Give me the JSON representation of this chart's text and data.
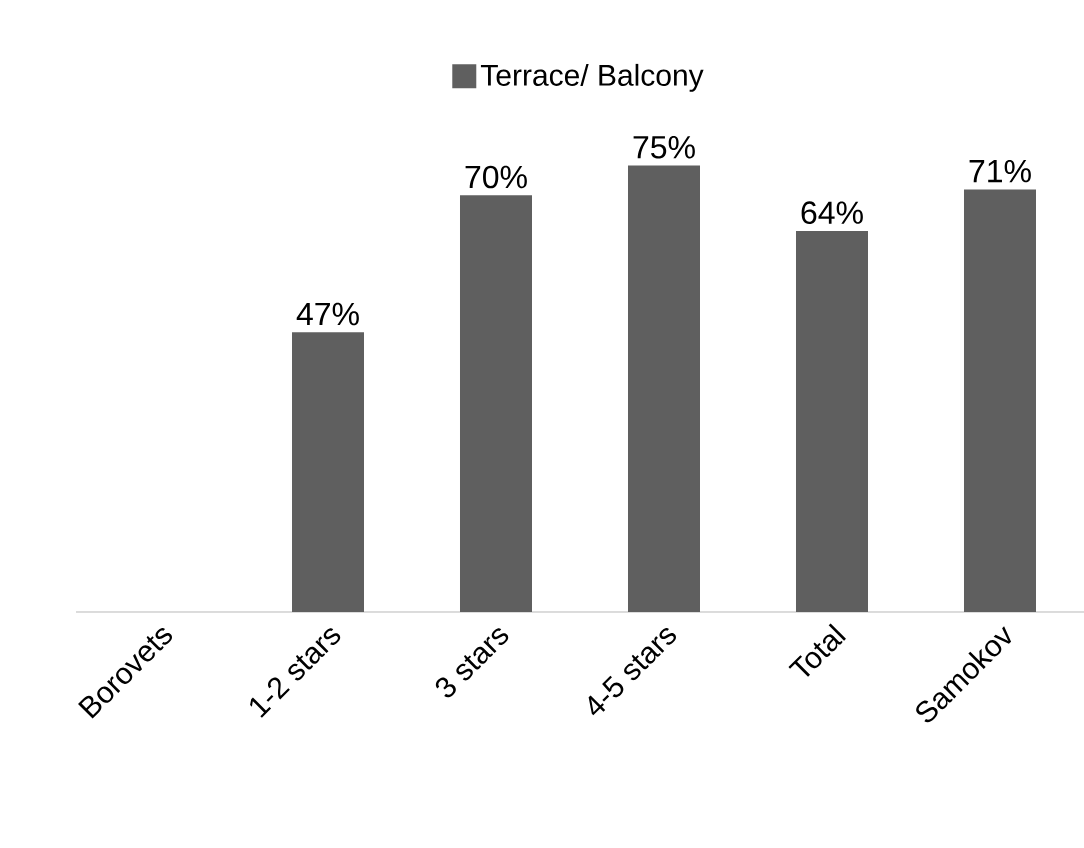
{
  "chart_data": {
    "type": "bar",
    "categories": [
      "Borovets",
      "1-2 stars",
      "3 stars",
      "4-5 stars",
      "Total",
      "Samokov"
    ],
    "series": [
      {
        "name": "Terrace/ Balcony",
        "color": "#5f5f5f",
        "values": [
          null,
          47,
          70,
          75,
          64,
          71
        ],
        "value_labels": [
          null,
          "47%",
          "70%",
          "75%",
          "64%",
          "71%"
        ]
      }
    ],
    "legend": "top",
    "grid": false
  }
}
